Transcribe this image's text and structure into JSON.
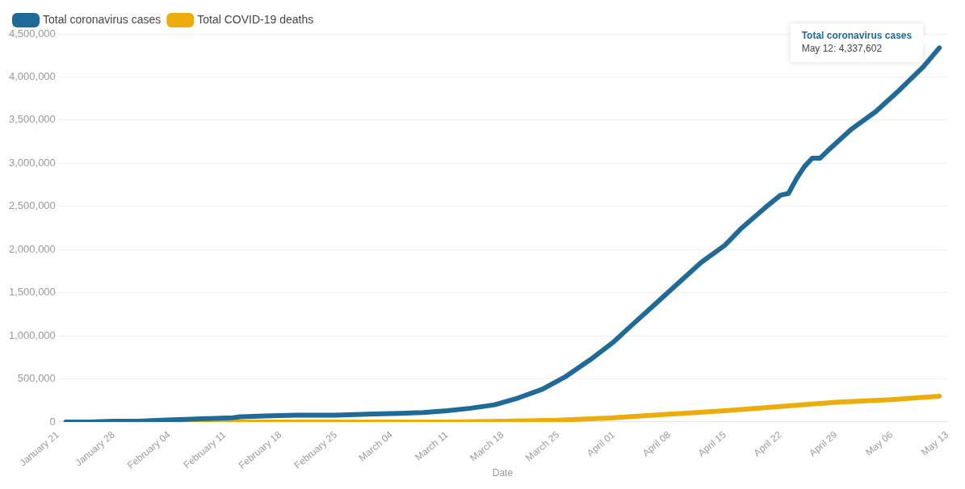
{
  "chart_data": {
    "type": "line",
    "xlabel": "Date",
    "legend": "top left",
    "grid": "y",
    "marker": "none",
    "line_style": "solid",
    "xlim": [
      "--01-21",
      "--05-13"
    ],
    "xticks": [
      {
        "value": "--01-21",
        "label": "January 21"
      },
      {
        "value": "--01-28",
        "label": "January 28"
      },
      {
        "value": "--02-04",
        "label": "February 04"
      },
      {
        "value": "--02-11",
        "label": "February 11"
      },
      {
        "value": "--02-18",
        "label": "February 18"
      },
      {
        "value": "--02-25",
        "label": "February 25"
      },
      {
        "value": "--03-04",
        "label": "March 04"
      },
      {
        "value": "--03-11",
        "label": "March 11"
      },
      {
        "value": "--03-18",
        "label": "March 18"
      },
      {
        "value": "--03-25",
        "label": "March 25"
      },
      {
        "value": "--04-01",
        "label": "April 01"
      },
      {
        "value": "--04-08",
        "label": "April 08"
      },
      {
        "value": "--04-15",
        "label": "April 15"
      },
      {
        "value": "--04-22",
        "label": "April 22"
      },
      {
        "value": "--04-29",
        "label": "April 29"
      },
      {
        "value": "--05-06",
        "label": "May 06"
      },
      {
        "value": "--05-13",
        "label": "May 13"
      }
    ],
    "ylim": [
      0,
      4500000
    ],
    "yticks": [
      0,
      {
        "value": 500000,
        "label": "500,000"
      },
      {
        "value": 1000000,
        "label": "1,000,000"
      },
      {
        "value": 1500000,
        "label": "1,500,000"
      },
      {
        "value": 2000000,
        "label": "2,000,000"
      },
      {
        "value": 2500000,
        "label": "2,500,000"
      },
      {
        "value": 3000000,
        "label": "3,000,000"
      },
      {
        "value": 3500000,
        "label": "3,500,000"
      },
      {
        "value": 4000000,
        "label": "4,000,000"
      },
      {
        "value": 4500000,
        "label": "4,500,000"
      }
    ],
    "series": [
      {
        "name": "Total coronavirus cases",
        "color": "#1f6a96",
        "x": [
          "--01-22",
          "--01-25",
          "--01-28",
          "--01-31",
          "--02-03",
          "--02-06",
          "--02-09",
          "--02-12",
          "--02-13",
          "--02-16",
          "--02-20",
          "--02-25",
          "--03-01",
          "--03-05",
          "--03-08",
          "--03-11",
          "--03-14",
          "--03-17",
          "--03-20",
          "--03-23",
          "--03-26",
          "--03-29",
          "--04-01",
          "--04-03",
          "--04-06",
          "--04-09",
          "--04-12",
          "--04-15",
          "--04-17",
          "--04-20",
          "--04-22",
          "--04-23",
          "--04-24",
          "--04-25",
          "--04-26",
          "--04-27",
          "--04-28",
          "--05-01",
          "--05-04",
          "--05-07",
          "--05-10",
          "--05-12"
        ],
        "values": [
          0,
          0,
          10000,
          10000,
          20000,
          30000,
          40000,
          50000,
          60000,
          70000,
          80000,
          80000,
          90000,
          100000,
          110000,
          130000,
          160000,
          200000,
          280000,
          380000,
          530000,
          720000,
          930000,
          1100000,
          1350000,
          1600000,
          1850000,
          2050000,
          2240000,
          2480000,
          2630000,
          2650000,
          2820000,
          2960000,
          3060000,
          3060000,
          3150000,
          3400000,
          3600000,
          3850000,
          4120000,
          4337602
        ]
      },
      {
        "name": "Total COVID-19 deaths",
        "color": "#ecad0a",
        "x": [
          "--01-22",
          "--02-01",
          "--02-15",
          "--03-01",
          "--03-11",
          "--03-18",
          "--03-25",
          "--04-01",
          "--04-08",
          "--04-15",
          "--04-22",
          "--04-29",
          "--05-06",
          "--05-12"
        ],
        "values": [
          0,
          0,
          0,
          0,
          0,
          10000,
          20000,
          50000,
          90000,
          130000,
          180000,
          230000,
          260000,
          300000
        ]
      }
    ],
    "annotations": [
      {
        "text": "Total coronavirus cases\nMay 12: 4,337,602",
        "x": "--05-12",
        "y": 4337602
      }
    ]
  }
}
